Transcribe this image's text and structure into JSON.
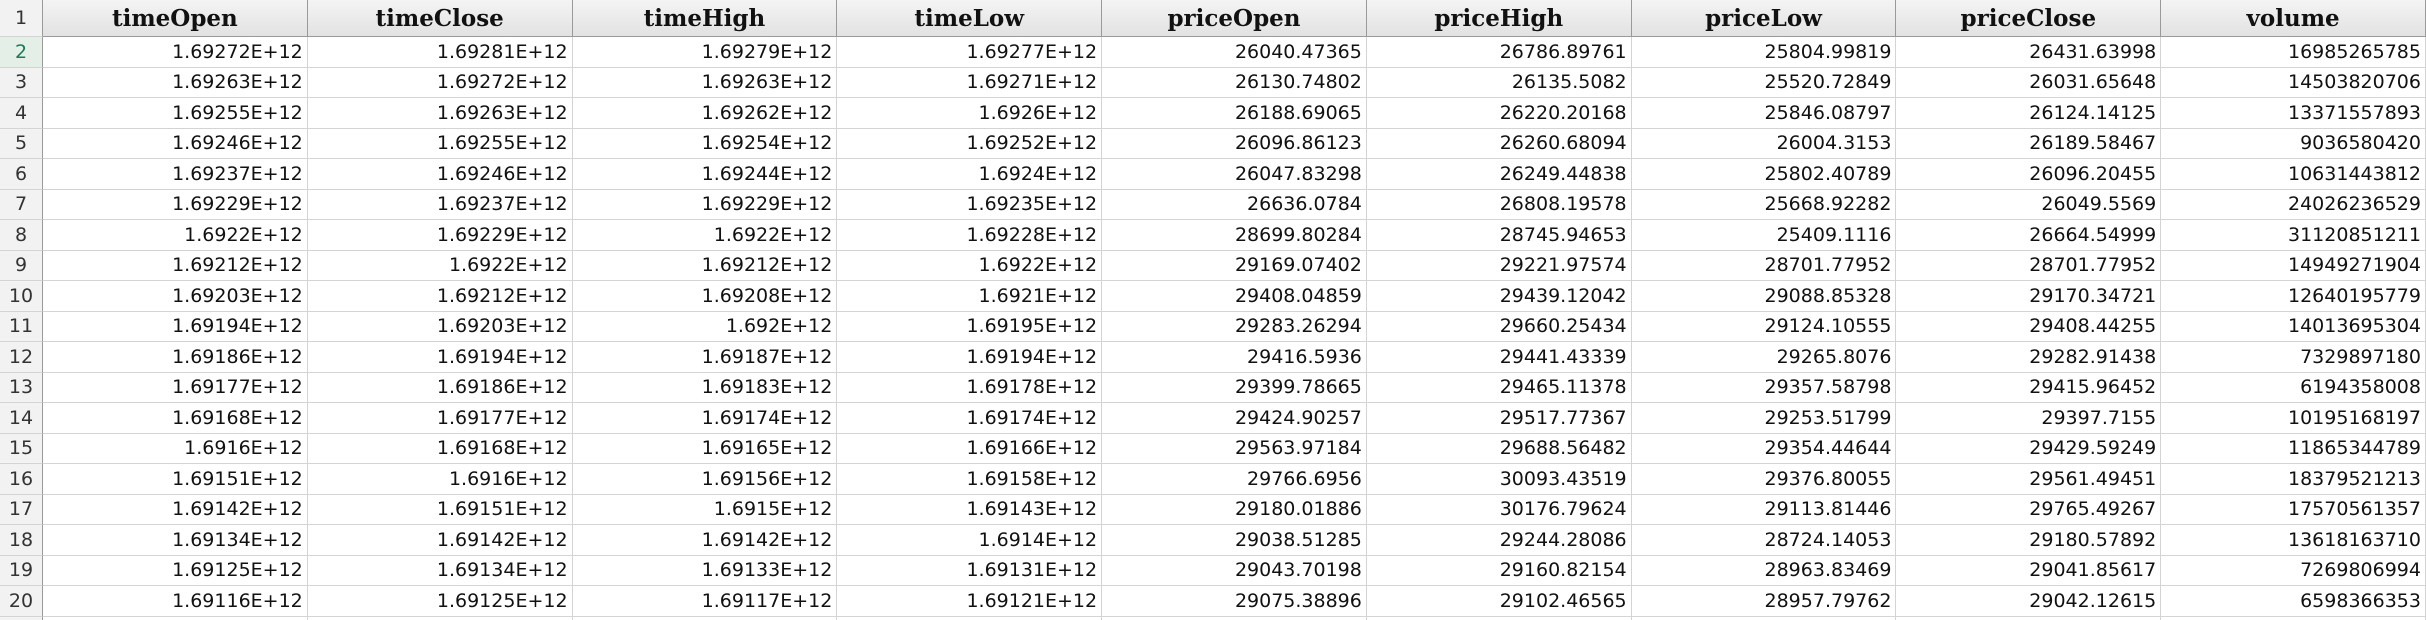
{
  "table": {
    "row_numbers": [
      1,
      2,
      3,
      4,
      5,
      6,
      7,
      8,
      9,
      10,
      11,
      12,
      13,
      14,
      15,
      16,
      17,
      18,
      19,
      20
    ],
    "header": [
      "timeOpen",
      "timeClose",
      "timeHigh",
      "timeLow",
      "priceOpen",
      "priceHigh",
      "priceLow",
      "priceClose",
      "volume"
    ],
    "rows": [
      [
        "1.69272E+12",
        "1.69281E+12",
        "1.69279E+12",
        "1.69277E+12",
        "26040.47365",
        "26786.89761",
        "25804.99819",
        "26431.63998",
        "16985265785"
      ],
      [
        "1.69263E+12",
        "1.69272E+12",
        "1.69263E+12",
        "1.69271E+12",
        "26130.74802",
        "26135.5082",
        "25520.72849",
        "26031.65648",
        "14503820706"
      ],
      [
        "1.69255E+12",
        "1.69263E+12",
        "1.69262E+12",
        "1.6926E+12",
        "26188.69065",
        "26220.20168",
        "25846.08797",
        "26124.14125",
        "13371557893"
      ],
      [
        "1.69246E+12",
        "1.69255E+12",
        "1.69254E+12",
        "1.69252E+12",
        "26096.86123",
        "26260.68094",
        "26004.3153",
        "26189.58467",
        "9036580420"
      ],
      [
        "1.69237E+12",
        "1.69246E+12",
        "1.69244E+12",
        "1.6924E+12",
        "26047.83298",
        "26249.44838",
        "25802.40789",
        "26096.20455",
        "10631443812"
      ],
      [
        "1.69229E+12",
        "1.69237E+12",
        "1.69229E+12",
        "1.69235E+12",
        "26636.0784",
        "26808.19578",
        "25668.92282",
        "26049.5569",
        "24026236529"
      ],
      [
        "1.6922E+12",
        "1.69229E+12",
        "1.6922E+12",
        "1.69228E+12",
        "28699.80284",
        "28745.94653",
        "25409.1116",
        "26664.54999",
        "31120851211"
      ],
      [
        "1.69212E+12",
        "1.6922E+12",
        "1.69212E+12",
        "1.6922E+12",
        "29169.07402",
        "29221.97574",
        "28701.77952",
        "28701.77952",
        "14949271904"
      ],
      [
        "1.69203E+12",
        "1.69212E+12",
        "1.69208E+12",
        "1.6921E+12",
        "29408.04859",
        "29439.12042",
        "29088.85328",
        "29170.34721",
        "12640195779"
      ],
      [
        "1.69194E+12",
        "1.69203E+12",
        "1.692E+12",
        "1.69195E+12",
        "29283.26294",
        "29660.25434",
        "29124.10555",
        "29408.44255",
        "14013695304"
      ],
      [
        "1.69186E+12",
        "1.69194E+12",
        "1.69187E+12",
        "1.69194E+12",
        "29416.5936",
        "29441.43339",
        "29265.8076",
        "29282.91438",
        "7329897180"
      ],
      [
        "1.69177E+12",
        "1.69186E+12",
        "1.69183E+12",
        "1.69178E+12",
        "29399.78665",
        "29465.11378",
        "29357.58798",
        "29415.96452",
        "6194358008"
      ],
      [
        "1.69168E+12",
        "1.69177E+12",
        "1.69174E+12",
        "1.69174E+12",
        "29424.90257",
        "29517.77367",
        "29253.51799",
        "29397.7155",
        "10195168197"
      ],
      [
        "1.6916E+12",
        "1.69168E+12",
        "1.69165E+12",
        "1.69166E+12",
        "29563.97184",
        "29688.56482",
        "29354.44644",
        "29429.59249",
        "11865344789"
      ],
      [
        "1.69151E+12",
        "1.6916E+12",
        "1.69156E+12",
        "1.69158E+12",
        "29766.6956",
        "30093.43519",
        "29376.80055",
        "29561.49451",
        "18379521213"
      ],
      [
        "1.69142E+12",
        "1.69151E+12",
        "1.6915E+12",
        "1.69143E+12",
        "29180.01886",
        "30176.79624",
        "29113.81446",
        "29765.49267",
        "17570561357"
      ],
      [
        "1.69134E+12",
        "1.69142E+12",
        "1.69142E+12",
        "1.6914E+12",
        "29038.51285",
        "29244.28086",
        "28724.14053",
        "29180.57892",
        "13618163710"
      ],
      [
        "1.69125E+12",
        "1.69134E+12",
        "1.69133E+12",
        "1.69131E+12",
        "29043.70198",
        "29160.82154",
        "28963.83469",
        "29041.85617",
        "7269806994"
      ],
      [
        "1.69116E+12",
        "1.69125E+12",
        "1.69117E+12",
        "1.69121E+12",
        "29075.38896",
        "29102.46565",
        "28957.79762",
        "29042.12615",
        "6598366353"
      ]
    ]
  }
}
